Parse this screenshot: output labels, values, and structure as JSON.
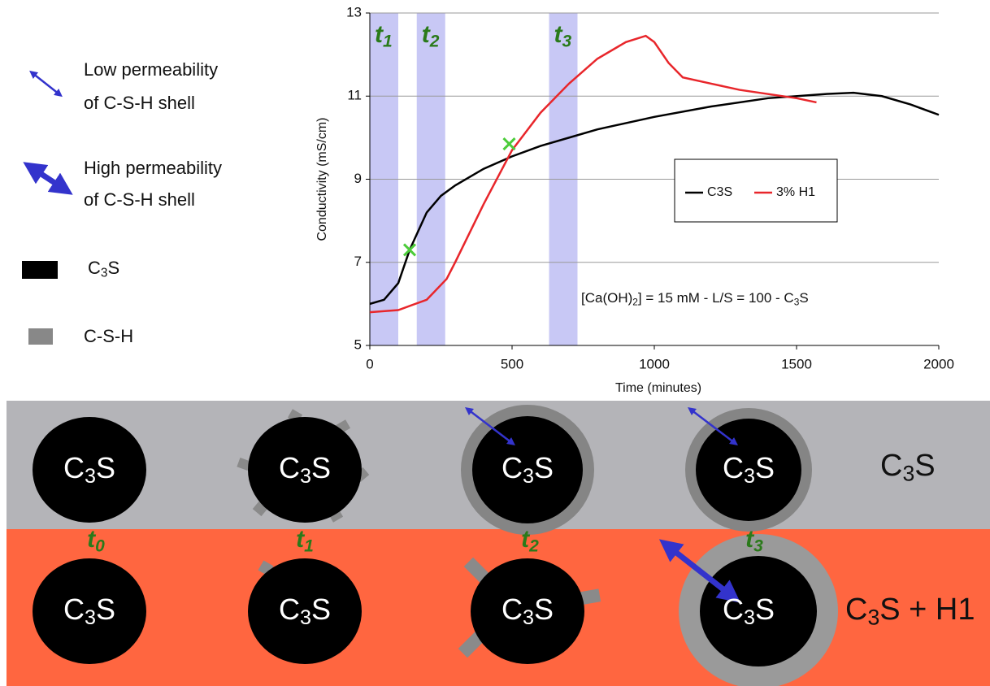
{
  "legend_panel": {
    "low": [
      "Low permeability",
      "of C-S-H shell"
    ],
    "high": [
      "High permeability",
      "of C-S-H shell"
    ],
    "c3s": [
      "C",
      "3",
      "S"
    ],
    "csh": "C-S-H"
  },
  "chart_data": {
    "type": "line",
    "ylabel": "Conductivity (mS/cm)",
    "xlabel": "Time (minutes)",
    "xlim": [
      0,
      2000
    ],
    "xticks": [
      0,
      500,
      1000,
      1500,
      2000
    ],
    "ylim": [
      5,
      13
    ],
    "yticks": [
      5,
      7,
      9,
      11,
      13
    ],
    "grid": true,
    "legend": "upper right",
    "series": [
      {
        "name": "C3S",
        "color": "#000000",
        "x": [
          0,
          50,
          100,
          140,
          200,
          250,
          300,
          400,
          500,
          600,
          700,
          800,
          1000,
          1200,
          1400,
          1600,
          1700,
          1800,
          1900,
          2000
        ],
        "values": [
          6.0,
          6.1,
          6.5,
          7.3,
          8.2,
          8.6,
          8.85,
          9.25,
          9.55,
          9.8,
          10.0,
          10.2,
          10.5,
          10.75,
          10.95,
          11.05,
          11.08,
          11.0,
          10.8,
          10.55
        ]
      },
      {
        "name": "3% H1",
        "color": "#e8262b",
        "x": [
          0,
          100,
          200,
          270,
          300,
          400,
          500,
          600,
          700,
          800,
          900,
          970,
          1000,
          1050,
          1100,
          1200,
          1300,
          1400,
          1500,
          1570
        ],
        "values": [
          5.8,
          5.85,
          6.1,
          6.6,
          7.0,
          8.4,
          9.7,
          10.6,
          11.3,
          11.9,
          12.3,
          12.45,
          12.3,
          11.8,
          11.45,
          11.3,
          11.15,
          11.05,
          10.95,
          10.85
        ]
      }
    ],
    "markers": {
      "color": "#4ccc3a",
      "x": [
        140,
        490
      ],
      "values": [
        7.3,
        9.85
      ]
    },
    "bands": [
      {
        "label": [
          "t",
          "1"
        ],
        "xlim": [
          0,
          100
        ]
      },
      {
        "label": [
          "t",
          "2"
        ],
        "xlim": [
          165,
          265
        ]
      },
      {
        "label": [
          "t",
          "3"
        ],
        "xlim": [
          630,
          730
        ]
      }
    ],
    "band_color": "#c8c8f5",
    "annotation": [
      "[Ca(OH)",
      "2",
      "] = 15 mM - L/S = 100 - C",
      "3",
      "S"
    ]
  },
  "diagram": {
    "particle_label": [
      "C",
      "3",
      "S"
    ],
    "rows": [
      [
        "C",
        "3",
        "S"
      ],
      [
        "C",
        "3",
        "S + H1"
      ]
    ],
    "times": [
      [
        "t",
        "0"
      ],
      [
        "t",
        "1"
      ],
      [
        "t",
        "2"
      ],
      [
        "t",
        "3"
      ]
    ]
  }
}
